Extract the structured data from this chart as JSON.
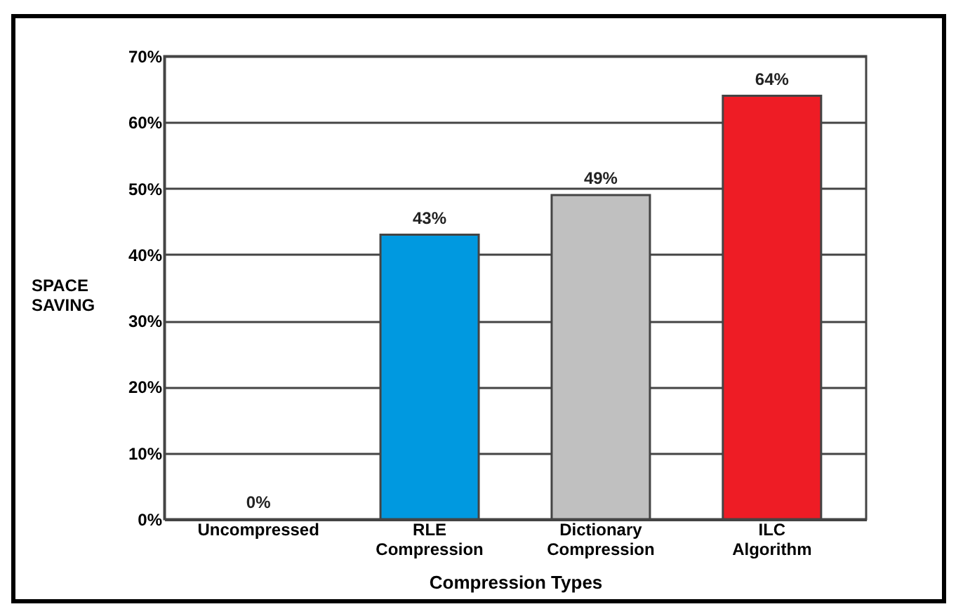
{
  "chart_data": {
    "type": "bar",
    "xlabel": "Compression   Types",
    "ylabel": "SPACE SAVING",
    "categories": [
      "Uncompressed",
      "RLE Compression",
      "Dictionary Compression",
      "ILC Algorithm"
    ],
    "values": [
      0,
      43,
      49,
      64
    ],
    "colors": [
      "#ffffff",
      "#0099e0",
      "#c0c0c0",
      "#ee1c25"
    ],
    "ylim": [
      0,
      70
    ],
    "yticks": [
      {
        "value": 0,
        "label": "0%"
      },
      {
        "value": 10,
        "label": "10%"
      },
      {
        "value": 20,
        "label": "20%"
      },
      {
        "value": 30,
        "label": "30%"
      },
      {
        "value": 40,
        "label": "40%"
      },
      {
        "value": 50,
        "label": "50%"
      },
      {
        "value": 60,
        "label": "60%"
      },
      {
        "value": 70,
        "label": "70%"
      }
    ],
    "value_labels": [
      "0%",
      "43%",
      "49%",
      "64%"
    ],
    "grid": "y"
  }
}
